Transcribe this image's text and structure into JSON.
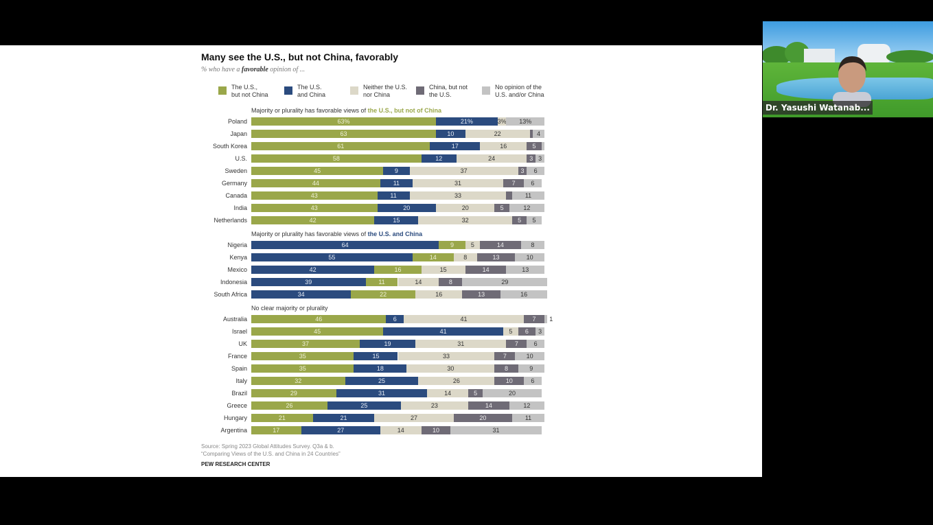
{
  "video": {
    "participant_name": "Dr. Yasushi Watanab..."
  },
  "colors": {
    "us_not_china": "#9aa74a",
    "us_and_china": "#2b4b7e",
    "neither": "#dcd8c8",
    "china_not_us": "#6f6b76",
    "no_opinion": "#c3c3c3"
  },
  "chart_data": {
    "type": "bar",
    "orientation": "horizontal-stacked",
    "title": "Many see the U.S., but not China, favorably",
    "subtitle_pre": "% who have a ",
    "subtitle_bold": "favorable",
    "subtitle_post": " opinion of ...",
    "xlim": [
      0,
      100
    ],
    "legend": [
      {
        "key": "us_not_china",
        "label": "The U.S.,\nbut not China"
      },
      {
        "key": "us_and_china",
        "label": "The U.S.\nand China"
      },
      {
        "key": "neither",
        "label": "Neither the U.S.\nnor China"
      },
      {
        "key": "china_not_us",
        "label": "China, but not\nthe U.S."
      },
      {
        "key": "no_opinion",
        "label": "No opinion of the\nU.S. and/or China"
      }
    ],
    "groups": [
      {
        "header_pre": "Majority or plurality has favorable views of ",
        "header_bold": "the U.S., but not of China",
        "header_color": "#9aa74a",
        "order": [
          "us_not_china",
          "us_and_china",
          "neither",
          "china_not_us",
          "no_opinion"
        ],
        "rows": [
          {
            "country": "Poland",
            "values": [
              63,
              21,
              3,
              0,
              13
            ],
            "labels": [
              "63%",
              "21%",
              "3%",
              "",
              "13%"
            ]
          },
          {
            "country": "Japan",
            "values": [
              63,
              10,
              22,
              1,
              4
            ],
            "labels": [
              "63",
              "10",
              "22",
              "",
              "4"
            ]
          },
          {
            "country": "South Korea",
            "values": [
              61,
              17,
              16,
              5,
              1
            ],
            "labels": [
              "61",
              "17",
              "16",
              "5",
              ""
            ]
          },
          {
            "country": "U.S.",
            "values": [
              58,
              12,
              24,
              3,
              3
            ],
            "labels": [
              "58",
              "12",
              "24",
              "3",
              "3"
            ]
          },
          {
            "country": "Sweden",
            "values": [
              45,
              9,
              37,
              3,
              6
            ],
            "labels": [
              "45",
              "9",
              "37",
              "3",
              "6"
            ]
          },
          {
            "country": "Germany",
            "values": [
              44,
              11,
              31,
              7,
              6
            ],
            "labels": [
              "44",
              "11",
              "31",
              "7",
              "6"
            ]
          },
          {
            "country": "Canada",
            "values": [
              43,
              11,
              33,
              2,
              11
            ],
            "labels": [
              "43",
              "11",
              "33",
              "",
              "11"
            ]
          },
          {
            "country": "India",
            "values": [
              43,
              20,
              20,
              5,
              12
            ],
            "labels": [
              "43",
              "20",
              "20",
              "5",
              "12"
            ]
          },
          {
            "country": "Netherlands",
            "values": [
              42,
              15,
              32,
              5,
              5
            ],
            "labels": [
              "42",
              "15",
              "32",
              "5",
              "5"
            ]
          }
        ]
      },
      {
        "header_pre": "Majority or plurality has favorable views of ",
        "header_bold": "the U.S. and China",
        "header_color": "#2b4b7e",
        "order": [
          "us_and_china",
          "us_not_china",
          "neither",
          "china_not_us",
          "no_opinion"
        ],
        "rows": [
          {
            "country": "Nigeria",
            "values": [
              64,
              9,
              5,
              14,
              8
            ],
            "labels": [
              "64",
              "9",
              "5",
              "14",
              "8"
            ]
          },
          {
            "country": "Kenya",
            "values": [
              55,
              14,
              8,
              13,
              10
            ],
            "labels": [
              "55",
              "14",
              "8",
              "13",
              "10"
            ]
          },
          {
            "country": "Mexico",
            "values": [
              42,
              16,
              15,
              14,
              13
            ],
            "labels": [
              "42",
              "16",
              "15",
              "14",
              "13"
            ]
          },
          {
            "country": "Indonesia",
            "values": [
              39,
              11,
              14,
              8,
              29
            ],
            "labels": [
              "39",
              "11",
              "14",
              "8",
              "29"
            ]
          },
          {
            "country": "South Africa",
            "values": [
              34,
              22,
              16,
              13,
              16
            ],
            "labels": [
              "34",
              "22",
              "16",
              "13",
              "16"
            ]
          }
        ]
      },
      {
        "header_pre": "No clear majority or plurality",
        "header_bold": "",
        "header_color": "#333333",
        "order": [
          "us_not_china",
          "us_and_china",
          "neither",
          "china_not_us",
          "no_opinion"
        ],
        "rows": [
          {
            "country": "Australia",
            "values": [
              46,
              6,
              41,
              7,
              1
            ],
            "labels": [
              "46",
              "6",
              "41",
              "7",
              "1"
            ]
          },
          {
            "country": "Israel",
            "values": [
              45,
              41,
              5,
              6,
              3
            ],
            "labels": [
              "45",
              "41",
              "5",
              "6",
              "3"
            ]
          },
          {
            "country": "UK",
            "values": [
              37,
              19,
              31,
              7,
              6
            ],
            "labels": [
              "37",
              "19",
              "31",
              "7",
              "6"
            ]
          },
          {
            "country": "France",
            "values": [
              35,
              15,
              33,
              7,
              10
            ],
            "labels": [
              "35",
              "15",
              "33",
              "7",
              "10"
            ]
          },
          {
            "country": "Spain",
            "values": [
              35,
              18,
              30,
              8,
              9
            ],
            "labels": [
              "35",
              "18",
              "30",
              "8",
              "9"
            ]
          },
          {
            "country": "Italy",
            "values": [
              32,
              25,
              26,
              10,
              6
            ],
            "labels": [
              "32",
              "25",
              "26",
              "10",
              "6"
            ]
          },
          {
            "country": "Brazil",
            "values": [
              29,
              31,
              14,
              5,
              20
            ],
            "labels": [
              "29",
              "31",
              "14",
              "5",
              "20"
            ]
          },
          {
            "country": "Greece",
            "values": [
              26,
              25,
              23,
              14,
              12
            ],
            "labels": [
              "26",
              "25",
              "23",
              "14",
              "12"
            ]
          },
          {
            "country": "Hungary",
            "values": [
              21,
              21,
              27,
              20,
              11
            ],
            "labels": [
              "21",
              "21",
              "27",
              "20",
              "11"
            ]
          },
          {
            "country": "Argentina",
            "values": [
              17,
              27,
              14,
              10,
              31
            ],
            "labels": [
              "17",
              "27",
              "14",
              "10",
              "31"
            ]
          }
        ]
      }
    ],
    "source": "Source: Spring 2023 Global Attitudes Survey. Q3a & b.\n“Comparing Views of the U.S. and China in 24 Countries”",
    "branding": "PEW RESEARCH CENTER"
  }
}
